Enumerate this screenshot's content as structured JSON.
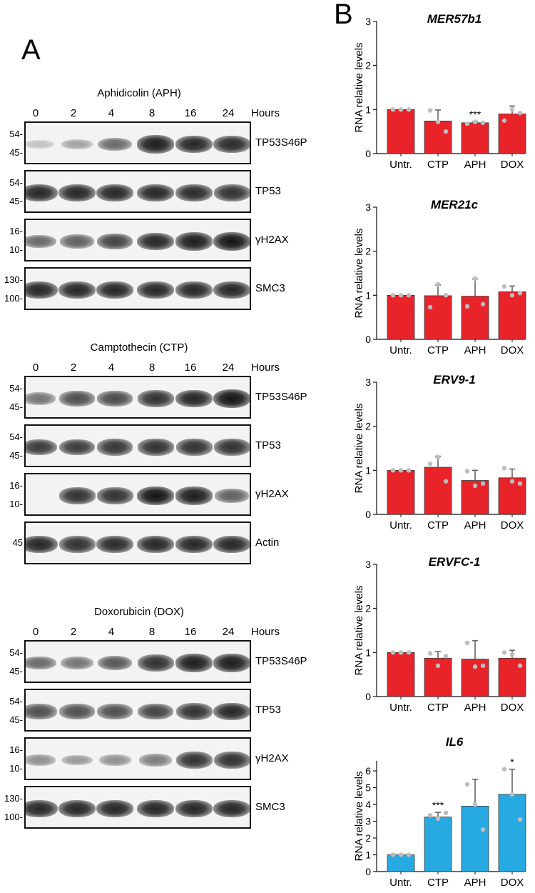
{
  "panel_a": {
    "label": "A",
    "experiments": [
      {
        "title": "Aphidicolin (APH)",
        "hours": [
          "0",
          "2",
          "4",
          "8",
          "16",
          "24"
        ],
        "hours_label": "Hours",
        "blots": [
          {
            "protein": "TP53S46P",
            "markers": [
              "54-",
              "45-"
            ],
            "band_intensity": [
              0.08,
              0.25,
              0.55,
              0.95,
              0.9,
              0.88
            ]
          },
          {
            "protein": "TP53",
            "markers": [
              "54-",
              "45-"
            ],
            "band_intensity": [
              0.9,
              0.9,
              0.9,
              0.9,
              0.88,
              0.85
            ]
          },
          {
            "protein": "γH2AX",
            "markers": [
              "16-",
              "10-"
            ],
            "band_intensity": [
              0.55,
              0.6,
              0.75,
              0.9,
              0.95,
              1.0
            ]
          },
          {
            "protein": "SMC3",
            "markers": [
              "130-",
              "100-"
            ],
            "band_intensity": [
              0.9,
              0.9,
              0.9,
              0.9,
              0.9,
              0.9
            ]
          }
        ]
      },
      {
        "title": "Camptothecin (CTP)",
        "hours": [
          "0",
          "2",
          "4",
          "8",
          "16",
          "24"
        ],
        "hours_label": "Hours",
        "blots": [
          {
            "protein": "TP53S46P",
            "markers": [
              "54-",
              "45-"
            ],
            "band_intensity": [
              0.5,
              0.7,
              0.72,
              0.85,
              0.92,
              1.0
            ]
          },
          {
            "protein": "TP53",
            "markers": [
              "54-",
              "45-"
            ],
            "band_intensity": [
              0.8,
              0.8,
              0.82,
              0.85,
              0.85,
              0.85
            ]
          },
          {
            "protein": "γH2AX",
            "markers": [
              "16-",
              "10-"
            ],
            "band_intensity": [
              0.0,
              0.85,
              0.85,
              1.0,
              0.95,
              0.6
            ]
          },
          {
            "protein": "Actin",
            "markers": [
              "45"
            ],
            "band_intensity": [
              0.9,
              0.85,
              0.88,
              0.9,
              0.9,
              0.9
            ]
          }
        ]
      },
      {
        "title": "Doxorubicin (DOX)",
        "hours": [
          "0",
          "2",
          "4",
          "8",
          "16",
          "24"
        ],
        "hours_label": "Hours",
        "blots": [
          {
            "protein": "TP53S46P",
            "markers": [
              "54-",
              "45-"
            ],
            "band_intensity": [
              0.55,
              0.5,
              0.65,
              0.85,
              0.95,
              0.95
            ]
          },
          {
            "protein": "TP53",
            "markers": [
              "54-",
              "45-"
            ],
            "band_intensity": [
              0.7,
              0.7,
              0.7,
              0.75,
              0.85,
              0.9
            ]
          },
          {
            "protein": "γH2AX",
            "markers": [
              "16-",
              "10-"
            ],
            "band_intensity": [
              0.35,
              0.3,
              0.35,
              0.45,
              0.85,
              0.85
            ]
          },
          {
            "protein": "SMC3",
            "markers": [
              "130-",
              "100-"
            ],
            "band_intensity": [
              0.9,
              0.9,
              0.9,
              0.9,
              0.9,
              0.9
            ]
          }
        ]
      }
    ]
  },
  "panel_b": {
    "label": "B"
  },
  "chart_data": [
    {
      "type": "bar",
      "title": "MER57b1",
      "ylabel": "RNA relative levels",
      "categories": [
        "Untr.",
        "CTP",
        "APH",
        "DOX"
      ],
      "values": [
        1.0,
        0.74,
        0.7,
        0.9
      ],
      "errors": [
        0.0,
        0.25,
        0.03,
        0.18
      ],
      "points": [
        [
          1.0,
          1.0,
          1.0
        ],
        [
          0.98,
          0.72,
          0.5
        ],
        [
          0.68,
          0.72,
          0.7
        ],
        [
          0.75,
          1.0,
          0.92
        ]
      ],
      "significance": [
        "",
        "",
        "***",
        ""
      ],
      "ylim": [
        0,
        3
      ],
      "yticks": [
        0,
        1,
        2,
        3
      ],
      "color": "#e8232a"
    },
    {
      "type": "bar",
      "title": "MER21c",
      "ylabel": "RNA relative levels",
      "categories": [
        "Untr.",
        "CTP",
        "APH",
        "DOX"
      ],
      "values": [
        1.0,
        0.99,
        0.98,
        1.08
      ],
      "errors": [
        0.0,
        0.24,
        0.39,
        0.13
      ],
      "points": [
        [
          1.0,
          1.0,
          1.0
        ],
        [
          0.73,
          1.25,
          1.0
        ],
        [
          0.75,
          1.38,
          0.8
        ],
        [
          1.2,
          1.0,
          1.05
        ]
      ],
      "significance": [
        "",
        "",
        "",
        ""
      ],
      "ylim": [
        0,
        3
      ],
      "yticks": [
        0,
        1,
        2,
        3
      ],
      "color": "#e8232a"
    },
    {
      "type": "bar",
      "title": "ERV9-1",
      "ylabel": "RNA relative levels",
      "categories": [
        "Untr.",
        "CTP",
        "APH",
        "DOX"
      ],
      "values": [
        1.0,
        1.07,
        0.77,
        0.83
      ],
      "errors": [
        0.0,
        0.25,
        0.23,
        0.2
      ],
      "points": [
        [
          1.0,
          1.0,
          1.0
        ],
        [
          1.15,
          1.3,
          0.75
        ],
        [
          0.98,
          0.65,
          0.7
        ],
        [
          1.05,
          0.75,
          0.7
        ]
      ],
      "significance": [
        "",
        "",
        "",
        ""
      ],
      "ylim": [
        0,
        3
      ],
      "yticks": [
        0,
        1,
        2,
        3
      ],
      "color": "#e8232a"
    },
    {
      "type": "bar",
      "title": "ERVFC-1",
      "ylabel": "RNA relative levels",
      "categories": [
        "Untr.",
        "CTP",
        "APH",
        "DOX"
      ],
      "values": [
        1.0,
        0.87,
        0.85,
        0.87
      ],
      "errors": [
        0.0,
        0.15,
        0.42,
        0.18
      ],
      "points": [
        [
          1.0,
          1.0,
          1.0
        ],
        [
          0.98,
          0.7,
          0.92
        ],
        [
          1.22,
          0.68,
          0.7
        ],
        [
          1.0,
          0.95,
          0.7
        ]
      ],
      "significance": [
        "",
        "",
        "",
        ""
      ],
      "ylim": [
        0,
        3
      ],
      "yticks": [
        0,
        1,
        2,
        3
      ],
      "color": "#e8232a"
    },
    {
      "type": "bar",
      "title": "IL6",
      "ylabel": "RNA relative levels",
      "categories": [
        "Untr.",
        "CTP",
        "APH",
        "DOX"
      ],
      "values": [
        1.0,
        3.25,
        3.9,
        4.6
      ],
      "errors": [
        0.0,
        0.28,
        1.6,
        1.5
      ],
      "points": [
        [
          1.0,
          1.0,
          1.0
        ],
        [
          3.35,
          3.15,
          3.5
        ],
        [
          5.2,
          4.0,
          2.5
        ],
        [
          6.1,
          4.6,
          3.1
        ]
      ],
      "significance": [
        "",
        "***",
        "",
        "*"
      ],
      "ylim": [
        0,
        6.6
      ],
      "yticks": [
        0,
        1,
        2,
        3,
        4,
        5,
        6
      ],
      "color": "#27a9e1"
    }
  ]
}
